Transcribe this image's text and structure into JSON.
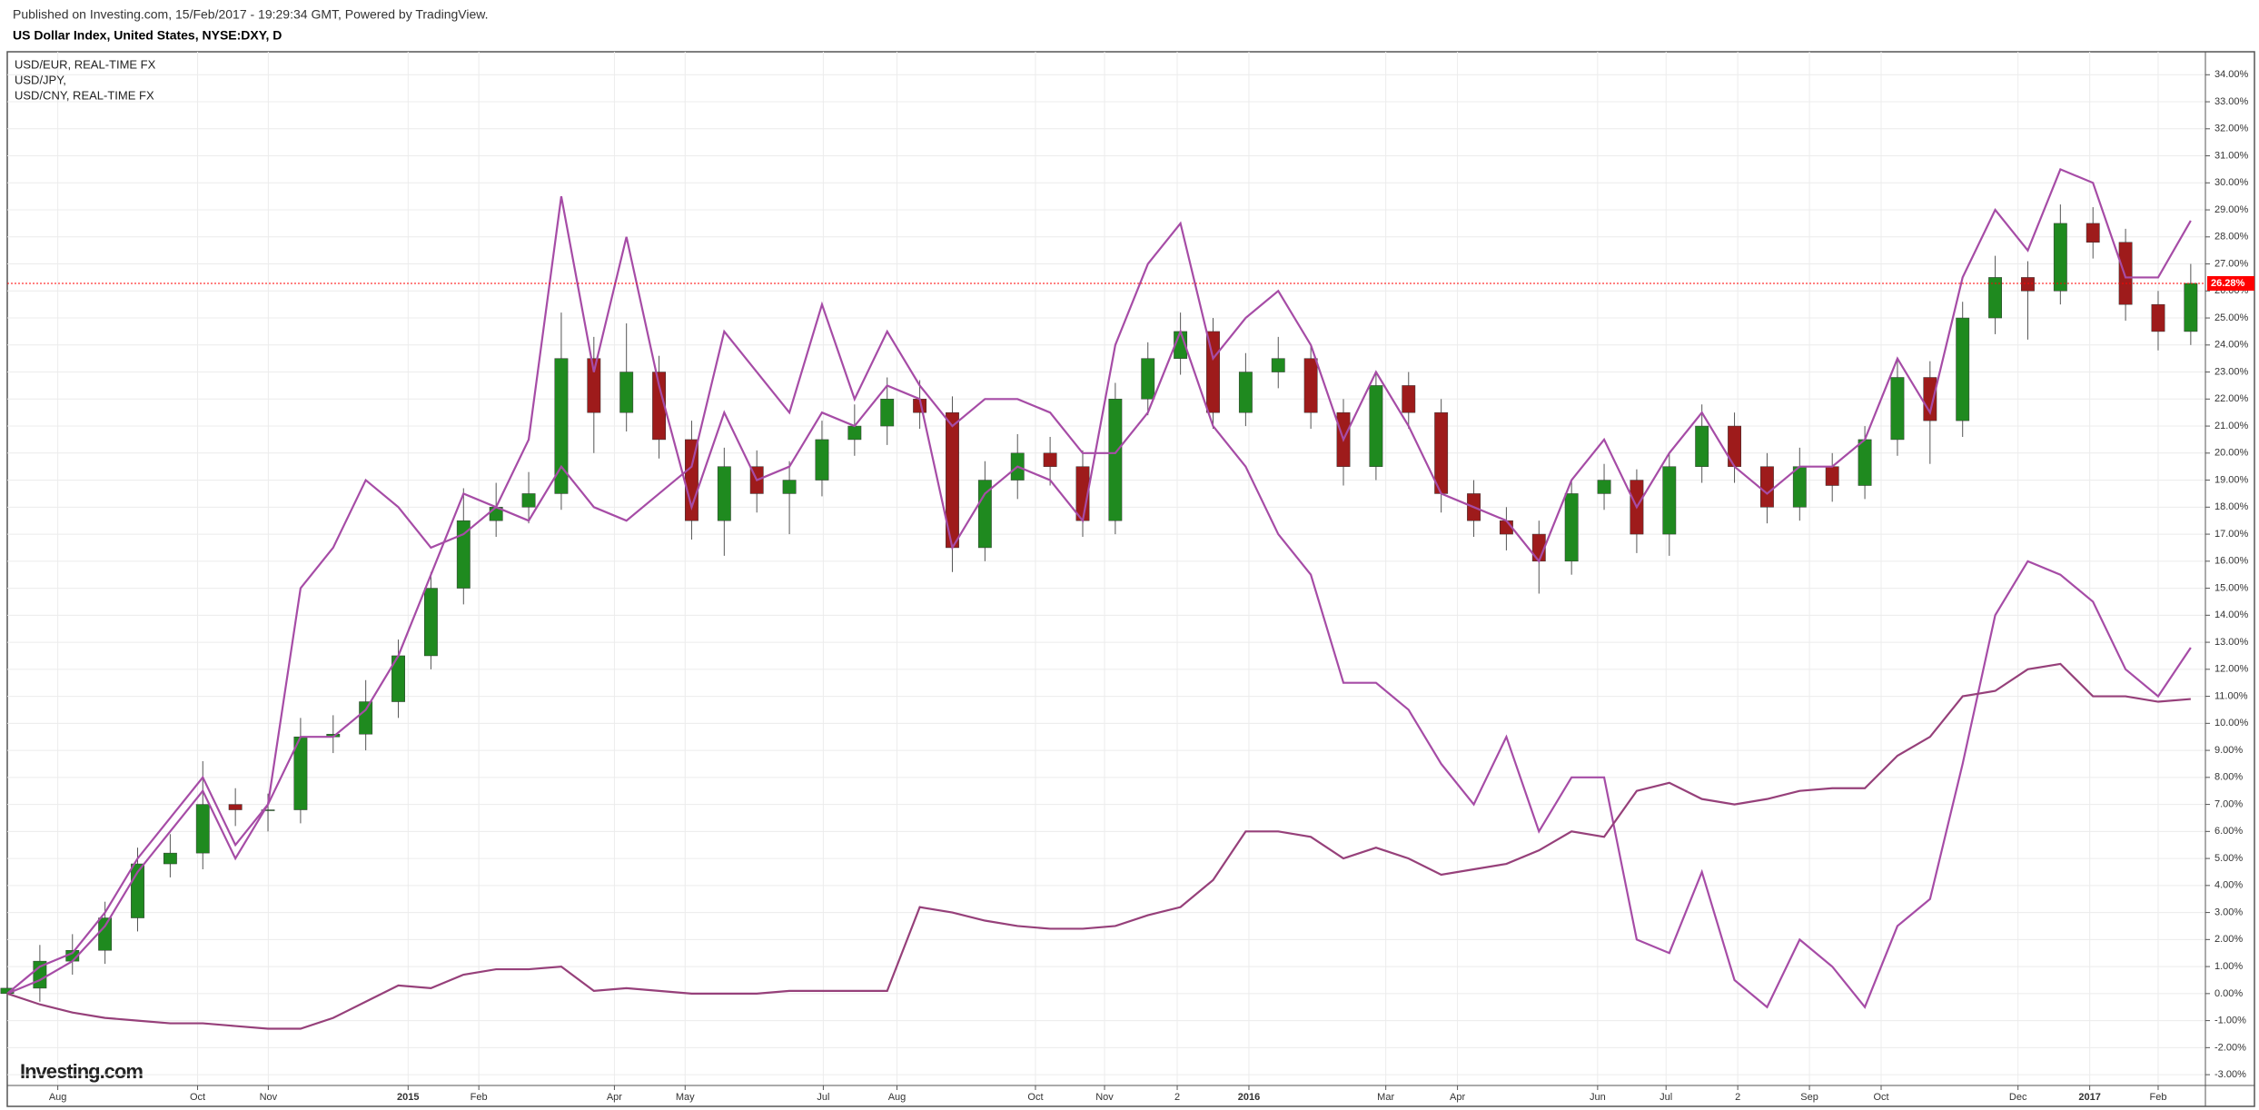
{
  "header": "Published on Investing.com, 15/Feb/2017 - 19:29:34 GMT, Powered by TradingView.",
  "watermark": "Investing.com",
  "chart_data": {
    "type": "candlestick",
    "title": "US Dollar Index, United States, NYSE:DXY, D",
    "x": [
      0,
      1,
      2,
      3,
      4,
      5,
      6,
      7,
      8,
      9,
      10,
      11,
      12,
      13,
      14,
      15,
      16,
      17,
      18,
      19,
      20,
      21,
      22,
      23,
      24,
      25,
      26,
      27,
      28,
      29,
      30,
      31,
      32,
      33,
      34,
      35,
      36,
      37,
      38,
      39,
      40,
      41,
      42,
      43,
      44,
      45,
      46,
      47,
      48,
      49,
      50,
      51,
      52,
      53,
      54,
      55,
      56,
      57,
      58,
      59,
      60,
      61,
      62,
      63,
      64,
      65,
      66,
      67
    ],
    "open": [
      0,
      0.2,
      1.2,
      1.6,
      2.8,
      4.8,
      5.2,
      7.0,
      6.8,
      6.8,
      9.5,
      9.6,
      10.8,
      12.5,
      15.0,
      17.5,
      18.0,
      18.5,
      23.5,
      21.5,
      23.0,
      20.5,
      17.5,
      19.5,
      18.5,
      19.0,
      20.5,
      21.0,
      22.0,
      21.5,
      16.5,
      19.0,
      20.0,
      19.5,
      17.5,
      22.0,
      23.5,
      24.5,
      21.5,
      23.0,
      23.5,
      21.5,
      19.5,
      22.5,
      21.5,
      18.5,
      17.5,
      17.0,
      16.0,
      18.5,
      19.0,
      17.0,
      19.5,
      21.0,
      19.5,
      18.0,
      19.5,
      18.8,
      20.5,
      22.8,
      21.2,
      25.0,
      26.5,
      26.0,
      28.5,
      27.8,
      25.5,
      24.5
    ],
    "high": [
      0.7,
      1.8,
      2.2,
      3.4,
      5.4,
      5.9,
      8.6,
      7.6,
      7.4,
      10.2,
      10.3,
      11.6,
      13.1,
      15.6,
      18.7,
      18.9,
      19.3,
      25.2,
      24.3,
      24.8,
      23.6,
      21.2,
      20.2,
      20.1,
      19.7,
      21.2,
      21.8,
      22.8,
      22.7,
      22.1,
      19.7,
      20.7,
      20.6,
      20.1,
      22.6,
      24.1,
      25.2,
      25.0,
      23.7,
      24.3,
      24.0,
      22.0,
      23.0,
      23.0,
      22.0,
      19.0,
      18.0,
      17.5,
      19.0,
      19.6,
      19.4,
      20.0,
      21.8,
      21.5,
      20.0,
      20.2,
      20.0,
      21.0,
      23.5,
      23.4,
      25.6,
      27.3,
      27.1,
      29.2,
      29.1,
      28.3,
      26.0,
      27.0
    ],
    "low": [
      -0.4,
      -0.3,
      0.7,
      1.1,
      2.3,
      4.3,
      4.6,
      6.2,
      6.0,
      6.3,
      8.9,
      9.0,
      10.2,
      12.0,
      14.4,
      16.9,
      17.4,
      17.9,
      20.0,
      20.8,
      19.8,
      16.8,
      16.2,
      17.8,
      17.0,
      18.4,
      19.9,
      20.3,
      20.9,
      15.6,
      16.0,
      18.3,
      18.8,
      16.9,
      17.0,
      21.4,
      22.9,
      20.9,
      21.0,
      22.4,
      20.9,
      18.8,
      19.0,
      20.9,
      17.8,
      16.9,
      16.4,
      14.8,
      15.5,
      17.9,
      16.3,
      16.2,
      18.9,
      18.9,
      17.4,
      17.5,
      18.2,
      18.3,
      19.9,
      19.6,
      20.6,
      24.4,
      24.2,
      25.5,
      27.2,
      24.9,
      23.8,
      24.0
    ],
    "close": [
      0.2,
      1.2,
      1.6,
      2.8,
      4.8,
      5.2,
      7.0,
      6.8,
      6.8,
      9.5,
      9.6,
      10.8,
      12.5,
      15.0,
      17.5,
      18.0,
      18.5,
      23.5,
      21.5,
      23.0,
      20.5,
      17.5,
      19.5,
      18.5,
      19.0,
      20.5,
      21.0,
      22.0,
      21.5,
      16.5,
      19.0,
      20.0,
      19.5,
      17.5,
      22.0,
      23.5,
      24.5,
      21.5,
      23.0,
      23.5,
      21.5,
      19.5,
      22.5,
      21.5,
      18.5,
      17.5,
      17.0,
      16.0,
      18.5,
      19.0,
      17.0,
      19.5,
      21.0,
      19.5,
      18.0,
      19.5,
      18.8,
      20.5,
      22.8,
      21.2,
      25.0,
      26.5,
      26.0,
      28.5,
      27.8,
      25.5,
      24.5,
      26.28
    ],
    "up_color": "#1f8a1f",
    "down_color": "#9e1b1b",
    "series": [
      {
        "name": "USD/EUR, REAL-TIME FX",
        "color": "#a64ca6",
        "values": [
          0,
          1.0,
          1.5,
          3.0,
          5.0,
          6.5,
          8.0,
          5.5,
          7.0,
          9.5,
          9.5,
          10.5,
          12.5,
          15.5,
          18.5,
          18.0,
          20.5,
          29.5,
          23.0,
          28.0,
          22.5,
          18.0,
          21.5,
          19.0,
          19.5,
          21.5,
          21.0,
          22.5,
          22.0,
          16.5,
          18.5,
          19.5,
          19.0,
          17.5,
          24.0,
          27.0,
          28.5,
          23.5,
          25.0,
          26.0,
          24.0,
          20.5,
          23.0,
          21.0,
          18.5,
          18.0,
          17.5,
          16.0,
          19.0,
          20.5,
          18.0,
          20.0,
          21.5,
          19.5,
          18.5,
          19.5,
          19.5,
          20.5,
          23.5,
          21.5,
          26.5,
          29.0,
          27.5,
          30.5,
          30.0,
          26.5,
          26.5,
          28.6
        ]
      },
      {
        "name": "USD/JPY,",
        "color": "#a64ca6",
        "values": [
          0,
          0.5,
          1.2,
          2.5,
          4.5,
          6.0,
          7.5,
          5.0,
          7.0,
          15.0,
          16.5,
          19.0,
          18.0,
          16.5,
          17.0,
          18.0,
          17.5,
          19.5,
          18.0,
          17.5,
          18.5,
          19.5,
          24.5,
          23.0,
          21.5,
          25.5,
          22.0,
          24.5,
          22.5,
          21.0,
          22.0,
          22.0,
          21.5,
          20.0,
          20.0,
          21.5,
          24.5,
          21.0,
          19.5,
          17.0,
          15.5,
          11.5,
          11.5,
          10.5,
          8.5,
          7.0,
          9.5,
          6.0,
          8.0,
          8.0,
          2.0,
          1.5,
          4.5,
          0.5,
          -0.5,
          2.0,
          1.0,
          -0.5,
          2.5,
          3.5,
          8.5,
          14.0,
          16.0,
          15.5,
          14.5,
          12.0,
          11.0,
          12.8
        ]
      },
      {
        "name": "USD/CNY, REAL-TIME FX",
        "color": "#96407a",
        "values": [
          0,
          -0.4,
          -0.7,
          -0.9,
          -1.0,
          -1.1,
          -1.1,
          -1.2,
          -1.3,
          -1.3,
          -0.9,
          -0.3,
          0.3,
          0.2,
          0.7,
          0.9,
          0.9,
          1.0,
          0.1,
          0.2,
          0.1,
          0.0,
          0.0,
          0.0,
          0.1,
          0.1,
          0.1,
          0.1,
          3.2,
          3.0,
          2.7,
          2.5,
          2.4,
          2.4,
          2.5,
          2.9,
          3.2,
          4.2,
          6.0,
          6.0,
          5.8,
          5.0,
          5.4,
          5.0,
          4.4,
          4.6,
          4.8,
          5.3,
          6.0,
          5.8,
          7.5,
          7.8,
          7.2,
          7.0,
          7.2,
          7.5,
          7.6,
          7.6,
          8.8,
          9.5,
          11.0,
          11.2,
          12.0,
          12.2,
          11.0,
          11.0,
          10.8,
          10.9
        ]
      }
    ],
    "xlim": [
      0,
      67.45
    ],
    "xticks": [
      {
        "value": 1.55,
        "label": "Aug"
      },
      {
        "value": 5.84,
        "label": "Oct"
      },
      {
        "value": 8.01,
        "label": "Nov"
      },
      {
        "value": 12.3,
        "label": "2015"
      },
      {
        "value": 14.47,
        "label": "Feb"
      },
      {
        "value": 18.63,
        "label": "Apr"
      },
      {
        "value": 20.8,
        "label": "May"
      },
      {
        "value": 25.04,
        "label": "Jul"
      },
      {
        "value": 27.3,
        "label": "Aug"
      },
      {
        "value": 31.55,
        "label": "Oct"
      },
      {
        "value": 33.67,
        "label": "Nov"
      },
      {
        "value": 35.9,
        "label": "2"
      },
      {
        "value": 38.1,
        "label": "2016"
      },
      {
        "value": 42.3,
        "label": "Mar"
      },
      {
        "value": 44.5,
        "label": "Apr"
      },
      {
        "value": 48.8,
        "label": "Jun"
      },
      {
        "value": 50.9,
        "label": "Jul"
      },
      {
        "value": 53.1,
        "label": "2"
      },
      {
        "value": 55.3,
        "label": "Sep"
      },
      {
        "value": 57.5,
        "label": "Oct"
      },
      {
        "value": 61.7,
        "label": "Dec"
      },
      {
        "value": 63.9,
        "label": "2017"
      },
      {
        "value": 66.0,
        "label": "Feb"
      }
    ],
    "ylim": [
      -3.4,
      34.85
    ],
    "yticks": [
      {
        "value": -3,
        "label": "-3.00%"
      },
      {
        "value": -2,
        "label": "-2.00%"
      },
      {
        "value": -1,
        "label": "-1.00%"
      },
      {
        "value": 0,
        "label": "0.00%"
      },
      {
        "value": 1,
        "label": "1.00%"
      },
      {
        "value": 2,
        "label": "2.00%"
      },
      {
        "value": 3,
        "label": "3.00%"
      },
      {
        "value": 4,
        "label": "4.00%"
      },
      {
        "value": 5,
        "label": "5.00%"
      },
      {
        "value": 6,
        "label": "6.00%"
      },
      {
        "value": 7,
        "label": "7.00%"
      },
      {
        "value": 8,
        "label": "8.00%"
      },
      {
        "value": 9,
        "label": "9.00%"
      },
      {
        "value": 10,
        "label": "10.00%"
      },
      {
        "value": 11,
        "label": "11.00%"
      },
      {
        "value": 12,
        "label": "12.00%"
      },
      {
        "value": 13,
        "label": "13.00%"
      },
      {
        "value": 14,
        "label": "14.00%"
      },
      {
        "value": 15,
        "label": "15.00%"
      },
      {
        "value": 16,
        "label": "16.00%"
      },
      {
        "value": 17,
        "label": "17.00%"
      },
      {
        "value": 18,
        "label": "18.00%"
      },
      {
        "value": 19,
        "label": "19.00%"
      },
      {
        "value": 20,
        "label": "20.00%"
      },
      {
        "value": 21,
        "label": "21.00%"
      },
      {
        "value": 22,
        "label": "22.00%"
      },
      {
        "value": 23,
        "label": "23.00%"
      },
      {
        "value": 24,
        "label": "24.00%"
      },
      {
        "value": 25,
        "label": "25.00%"
      },
      {
        "value": 26,
        "label": "26.00%"
      },
      {
        "value": 27,
        "label": "27.00%"
      },
      {
        "value": 28,
        "label": "28.00%"
      },
      {
        "value": 29,
        "label": "29.00%"
      },
      {
        "value": 30,
        "label": "30.00%"
      },
      {
        "value": 31,
        "label": "31.00%"
      },
      {
        "value": 32,
        "label": "32.00%"
      },
      {
        "value": 33,
        "label": "33.00%"
      },
      {
        "value": 34,
        "label": "34.00%"
      }
    ],
    "grid": true,
    "legend": "top-left",
    "last_value": {
      "value": 26.28,
      "label": "26.28%",
      "color": "#ff0000"
    }
  }
}
